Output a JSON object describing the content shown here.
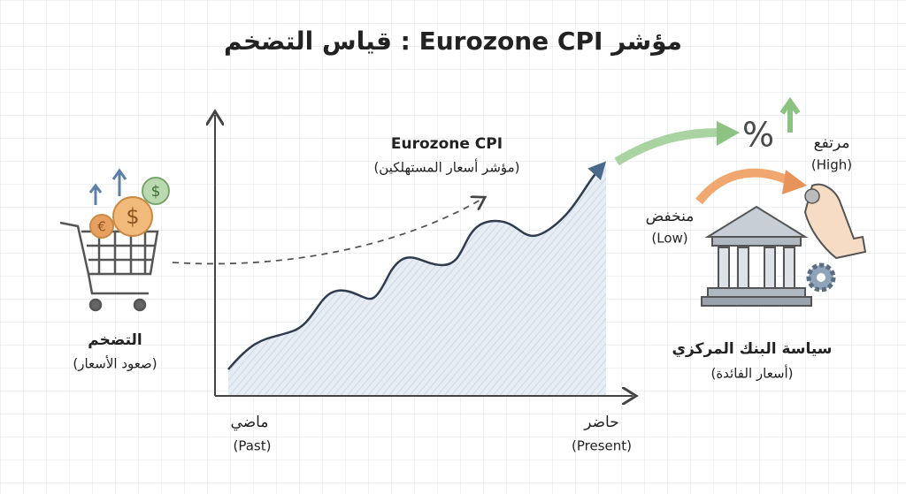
{
  "header": {
    "title": "مؤشر Eurozone CPI : قياس التضخم"
  },
  "chart": {
    "label": "Eurozone CPI",
    "sublabel": "(مؤشر أسعار المستهلكين)",
    "x_start": {
      "label": "ماضي",
      "sublabel": "(Past)"
    },
    "x_end": {
      "label": "حاضر",
      "sublabel": "(Present)"
    }
  },
  "inflation": {
    "label": "التضخم",
    "sublabel": "(صعود الأسعار)",
    "icons": [
      "$",
      "€",
      "$"
    ]
  },
  "policy": {
    "label": "سياسة البنك المركزي",
    "sublabel": "(أسعار الفائدة)",
    "high": {
      "label": "مرتفع",
      "sublabel": "(High)"
    },
    "low": {
      "label": "منخفض",
      "sublabel": "(Low)"
    },
    "icon": "%"
  }
}
